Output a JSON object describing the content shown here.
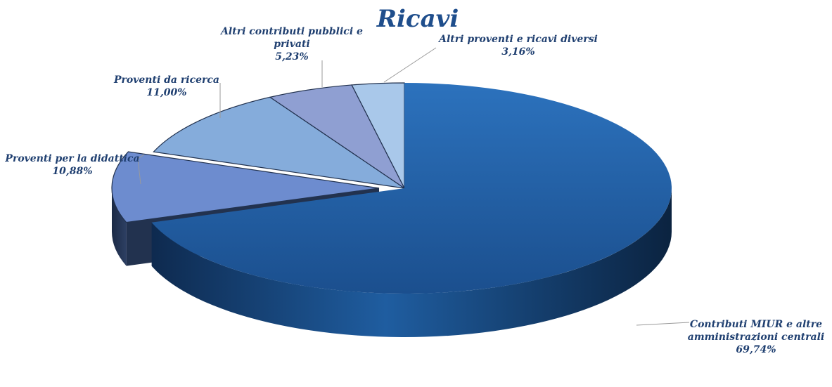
{
  "chart_data": {
    "type": "pie",
    "title": "Ricavi",
    "slices": [
      {
        "label_lines": [
          "Contributi MIUR e altre",
          "amministrazioni centrali"
        ],
        "value_text": "69,74%",
        "value": 69.74,
        "color": "#2463a8",
        "exploded": false
      },
      {
        "label_lines": [
          "Proventi per la didattica"
        ],
        "value_text": "10,88%",
        "value": 10.88,
        "color": "#6d8ccf",
        "exploded": true
      },
      {
        "label_lines": [
          "Proventi da ricerca"
        ],
        "value_text": "11,00%",
        "value": 11.0,
        "color": "#85acdb",
        "exploded": false
      },
      {
        "label_lines": [
          "Altri contributi pubblici e",
          "privati"
        ],
        "value_text": "5,23%",
        "value": 5.23,
        "color": "#8f9fd2",
        "exploded": false
      },
      {
        "label_lines": [
          "Altri proventi e ricavi diversi"
        ],
        "value_text": "3,16%",
        "value": 3.16,
        "color": "#a9c8ea",
        "exploded": false
      }
    ]
  }
}
